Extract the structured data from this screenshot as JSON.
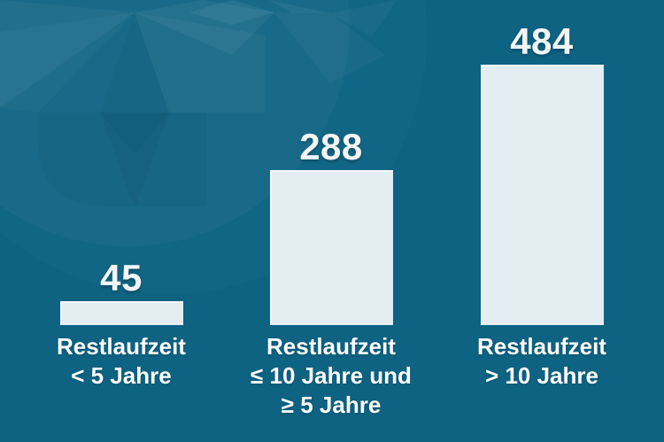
{
  "chart_data": {
    "type": "bar",
    "title": "",
    "orientation": "vertical",
    "categories": [
      "Restlaufzeit < 5 Jahre",
      "Restlaufzeit ≤ 10 Jahre und ≥ 5 Jahre",
      "Restlaufzeit > 10 Jahre"
    ],
    "category_lines": [
      [
        "Restlaufzeit",
        "< 5 Jahre"
      ],
      [
        "Restlaufzeit",
        "≤ 10 Jahre und",
        "≥ 5 Jahre"
      ],
      [
        "Restlaufzeit",
        "> 10 Jahre"
      ]
    ],
    "values": [
      45,
      288,
      484
    ],
    "value_labels": [
      "45",
      "288",
      "484"
    ],
    "xlabel": "",
    "ylabel": "",
    "ylim": [
      0,
      500
    ],
    "grid": false,
    "legend": "none",
    "colors": {
      "background": "#0e6383",
      "bar_fill": "#e3edf2",
      "value_label": "#f3f6f5",
      "category_label": "#ffffff",
      "watermark_facet_light": "rgba(255,255,255,0.05)",
      "watermark_facet_dark": "rgba(3,47,66,0.06)"
    },
    "decoration": "faceted-gem-watermark-top-left"
  }
}
